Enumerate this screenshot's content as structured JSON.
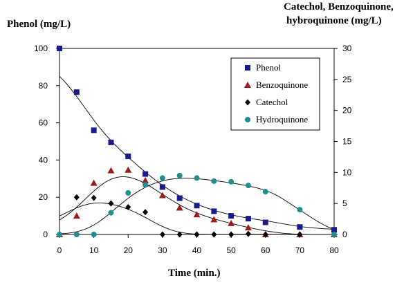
{
  "chart_data": {
    "type": "scatter",
    "ylabel_left": "Phenol (mg/L)",
    "ylabel_right": [
      "Catechol, Benzoquinone,",
      "hybroquinone (mg/L)"
    ],
    "xlabel": "Time (min.)",
    "xlim": [
      0,
      80
    ],
    "xticks": [
      0,
      10,
      20,
      30,
      40,
      50,
      60,
      70,
      80
    ],
    "ylim_left": [
      0,
      100
    ],
    "yticks_left": [
      0,
      20,
      40,
      60,
      80,
      100
    ],
    "ylim_right": [
      0,
      30
    ],
    "yticks_right": [
      0,
      5,
      10,
      15,
      20,
      25,
      30
    ],
    "legend_position": "top-right",
    "series": [
      {
        "name": "Phenol",
        "axis": "left",
        "marker": "square",
        "color": "#1a1a8c",
        "x": [
          0,
          5,
          10,
          15,
          20,
          25,
          30,
          35,
          40,
          45,
          50,
          55,
          60,
          70,
          80
        ],
        "y": [
          100,
          76.5,
          56,
          49.5,
          42,
          32.5,
          25.5,
          19.5,
          15.5,
          12.5,
          10,
          8.5,
          6.5,
          4,
          2.5
        ]
      },
      {
        "name": "Benzoquinone",
        "axis": "right",
        "marker": "triangle",
        "color": "#9c1c1c",
        "x": [
          0,
          5,
          10,
          15,
          20,
          25,
          30,
          35,
          40,
          45,
          50,
          55,
          60,
          70,
          80
        ],
        "y": [
          0,
          3,
          8.3,
          10.3,
          10.4,
          8.7,
          6.3,
          4.3,
          3.2,
          2.4,
          1.8,
          1.1,
          0,
          0,
          0
        ]
      },
      {
        "name": "Catechol",
        "axis": "right",
        "marker": "diamond",
        "color": "#000000",
        "x": [
          0,
          5,
          10,
          15,
          20,
          25,
          30,
          35,
          40,
          45,
          50,
          55,
          60,
          70,
          80
        ],
        "y": [
          0,
          6,
          5.9,
          5,
          4.4,
          3.6,
          0,
          0,
          0,
          0,
          0,
          0.1,
          0,
          0,
          0
        ]
      },
      {
        "name": "Hydroquinone",
        "axis": "right",
        "marker": "circle",
        "color": "#1f8f8f",
        "x": [
          0,
          5,
          10,
          15,
          20,
          25,
          30,
          35,
          40,
          45,
          50,
          55,
          60,
          70,
          80
        ],
        "y": [
          0,
          0,
          0,
          3.5,
          6.7,
          8,
          9.1,
          9.5,
          9.1,
          8.6,
          8.5,
          7.9,
          6.9,
          4,
          0
        ]
      }
    ]
  }
}
